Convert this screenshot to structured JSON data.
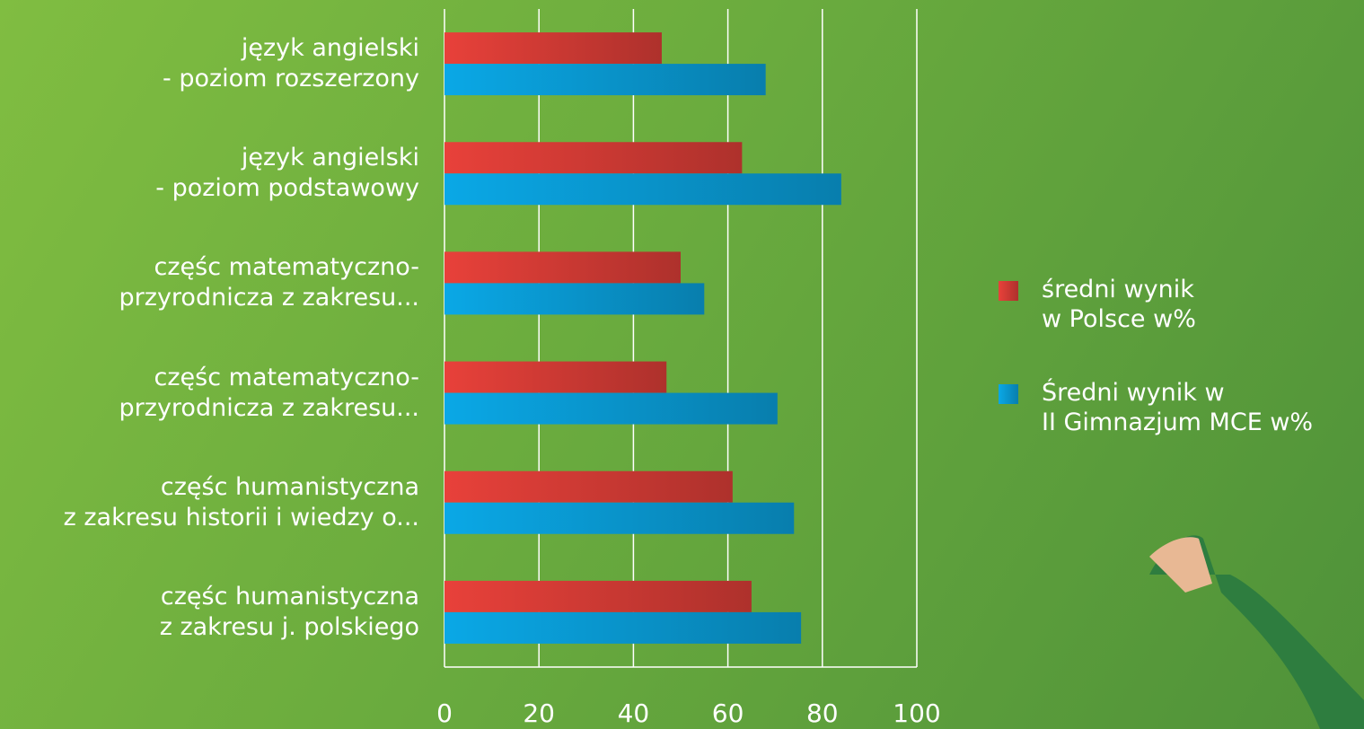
{
  "chart_data": {
    "type": "bar",
    "orientation": "horizontal",
    "categories": [
      "język angielski\n- poziom rozszerzony",
      "język angielski\n- poziom podstawowy",
      "częśc matematyczno-\nprzyrodnicza z zakresu...",
      "częśc matematyczno-\nprzyrodnicza z zakresu...",
      "częśc humanistyczna\nz zakresu historii i wiedzy o...",
      "częśc humanistyczna\nz zakresu j. polskiego"
    ],
    "series": [
      {
        "name": "średni wynik\nw Polsce w%",
        "color": "#e8413a",
        "values": [
          46,
          63,
          50,
          47,
          61,
          65
        ]
      },
      {
        "name": "Średni wynik w\nII Gimnazjum MCE w%",
        "color": "#0aa8e6",
        "values": [
          68,
          84,
          55,
          70.5,
          74,
          75.5
        ]
      }
    ],
    "xlim": [
      0,
      100
    ],
    "xticks": [
      0,
      20,
      40,
      60,
      80,
      100
    ],
    "grid": true
  }
}
